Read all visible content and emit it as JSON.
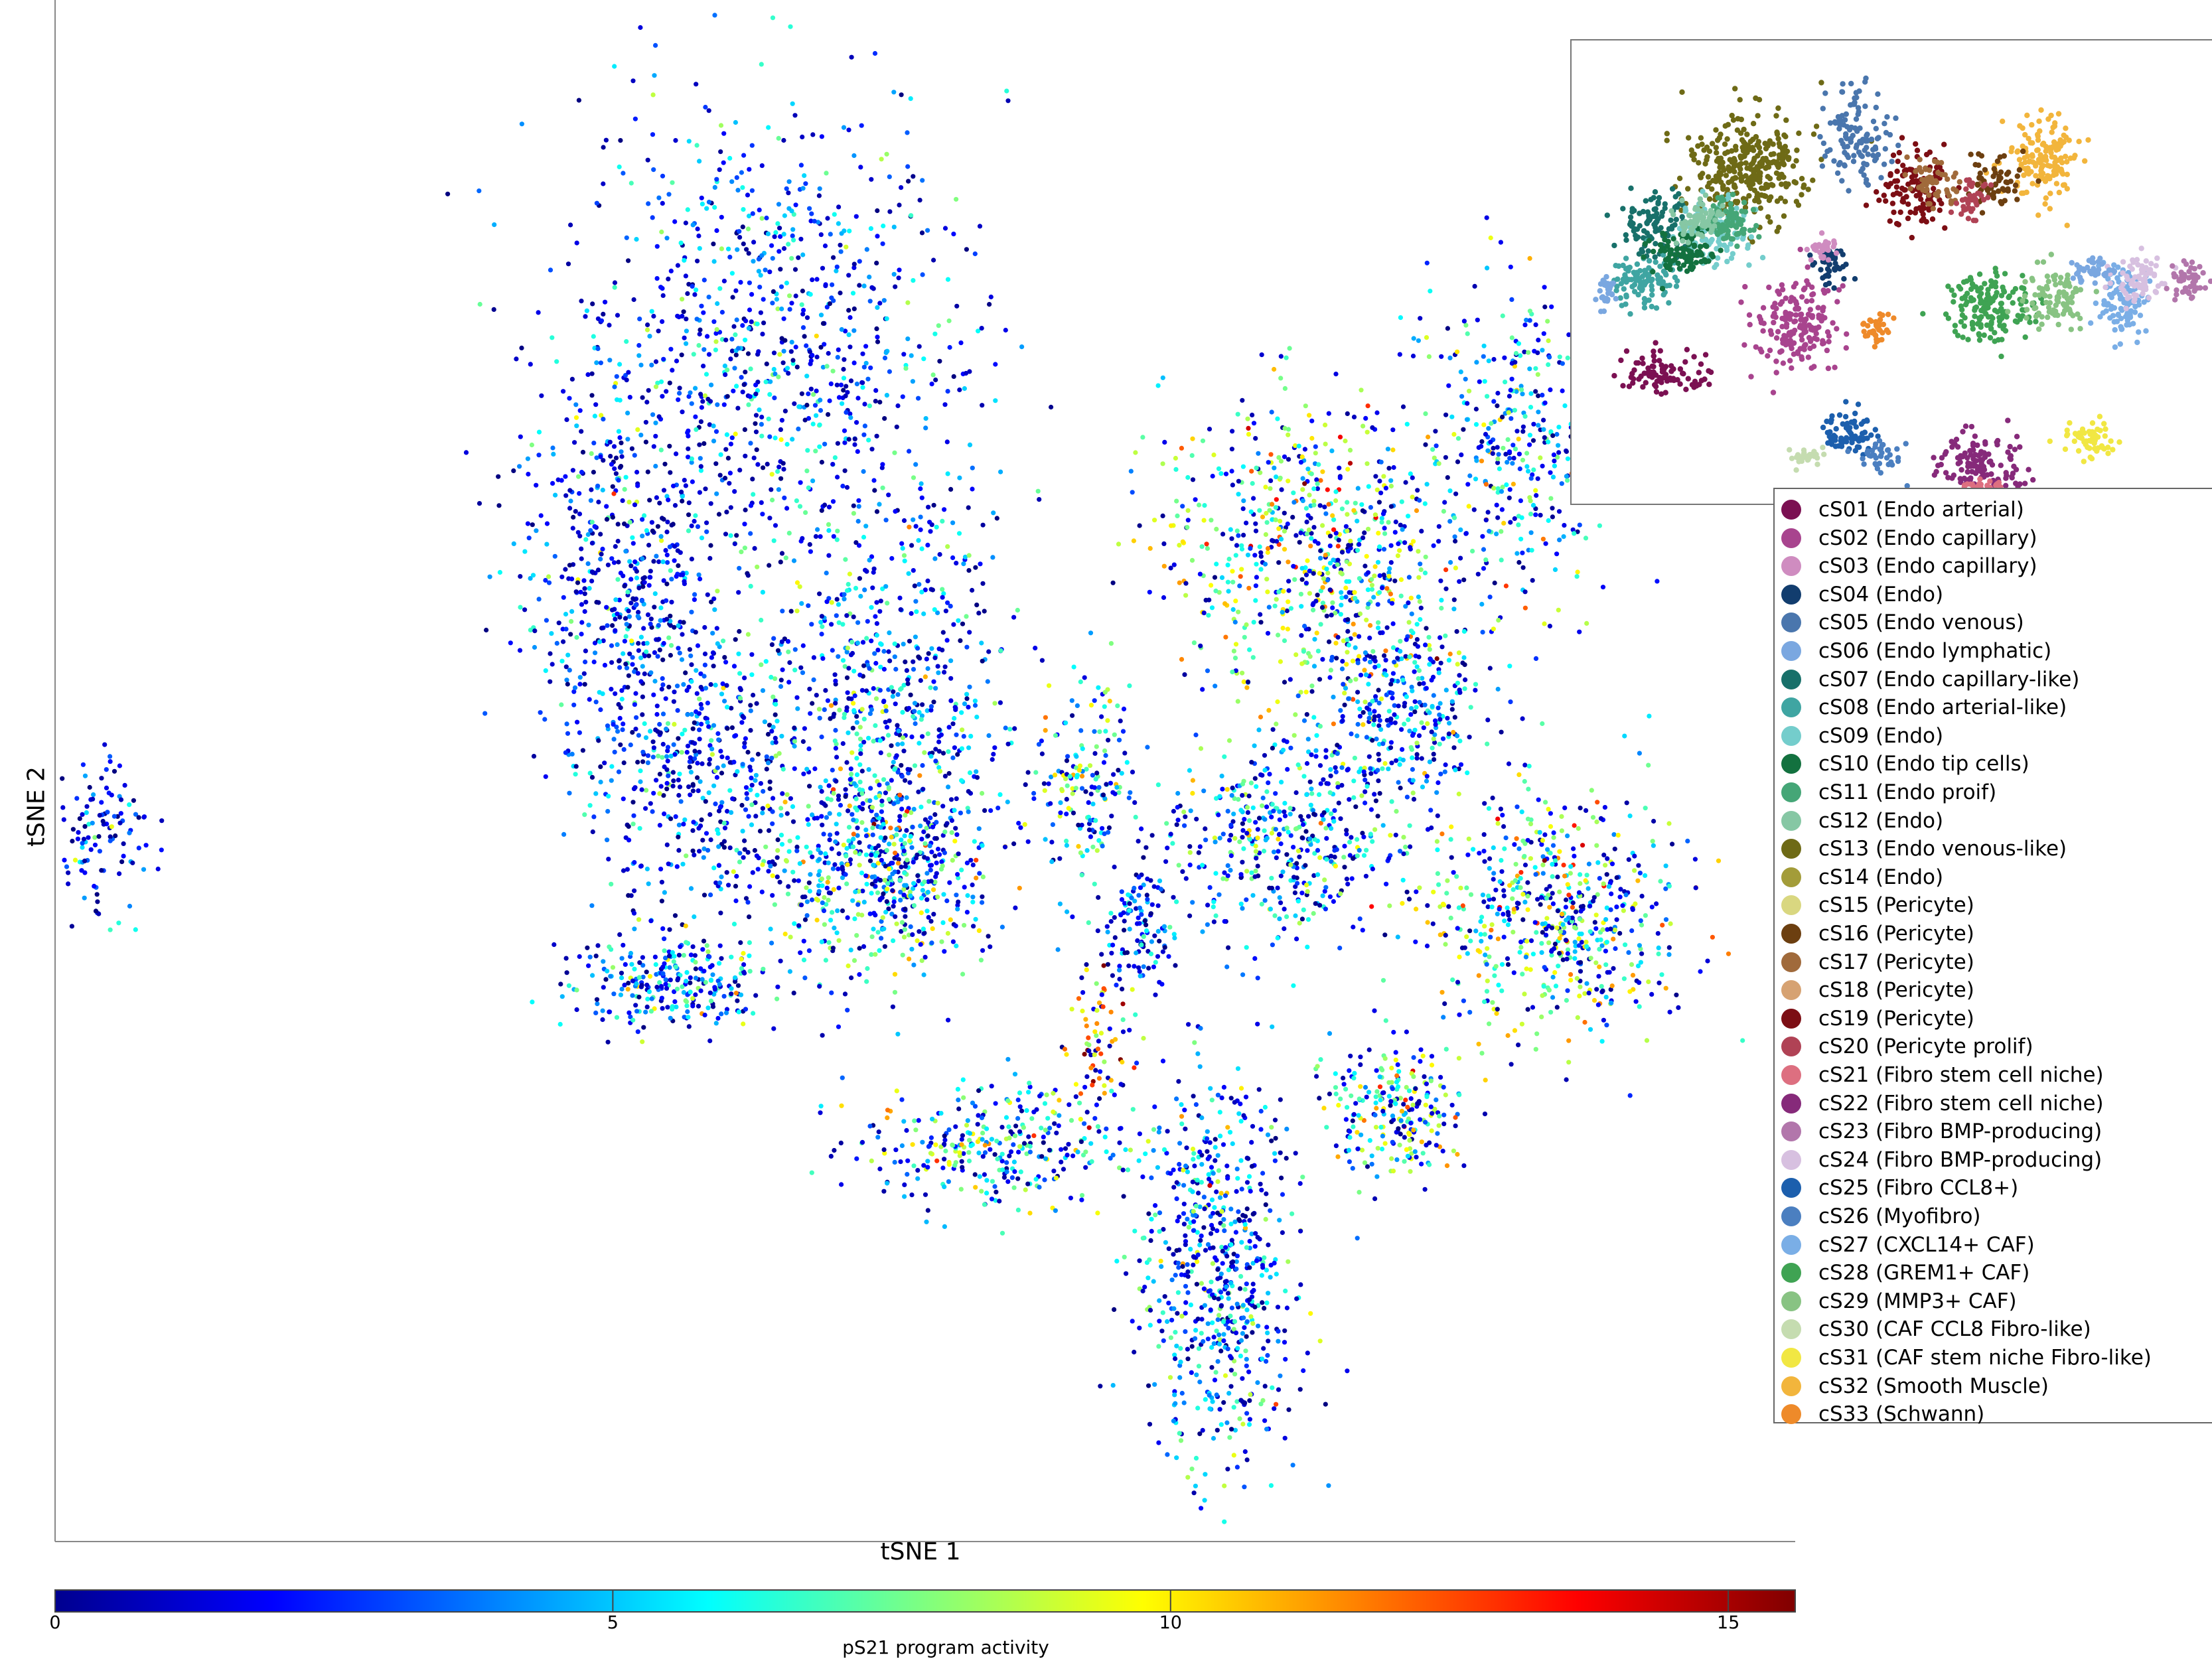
{
  "chart_data": [
    {
      "type": "scatter",
      "title": "",
      "xlabel": "tSNE 1",
      "ylabel": "tSNE 2",
      "color_by": "pS21 program activity",
      "colormap": "jet",
      "clusters": [
        {
          "cx": -10,
          "cy": 62,
          "rx": 22,
          "ry": 26,
          "n": 900,
          "mean": 3.5
        },
        {
          "cx": -28,
          "cy": 36,
          "rx": 12,
          "ry": 22,
          "n": 550,
          "mean": 3.0
        },
        {
          "cx": -18,
          "cy": 15,
          "rx": 12,
          "ry": 16,
          "n": 400,
          "mean": 3.0
        },
        {
          "cx": 5,
          "cy": 22,
          "rx": 14,
          "ry": 22,
          "n": 650,
          "mean": 4.5
        },
        {
          "cx": 5,
          "cy": 5,
          "rx": 13,
          "ry": 10,
          "n": 500,
          "mean": 6.0
        },
        {
          "cx": -22,
          "cy": -8,
          "rx": 12,
          "ry": 5,
          "n": 280,
          "mean": 5.0
        },
        {
          "cx": -95,
          "cy": 8,
          "rx": 6,
          "ry": 8,
          "n": 120,
          "mean": 3.0
        },
        {
          "cx": 30,
          "cy": 15,
          "rx": 6,
          "ry": 10,
          "n": 170,
          "mean": 6.5
        },
        {
          "cx": 37,
          "cy": -2,
          "rx": 4,
          "ry": 6,
          "n": 120,
          "mean": 3.5
        },
        {
          "cx": 60,
          "cy": 40,
          "rx": 18,
          "ry": 16,
          "n": 750,
          "mean": 7.5
        },
        {
          "cx": 85,
          "cy": 52,
          "rx": 10,
          "ry": 16,
          "n": 350,
          "mean": 5.5
        },
        {
          "cx": 55,
          "cy": 8,
          "rx": 14,
          "ry": 10,
          "n": 450,
          "mean": 5.5
        },
        {
          "cx": 90,
          "cy": 0,
          "rx": 15,
          "ry": 12,
          "n": 600,
          "mean": 7.0
        },
        {
          "cx": 70,
          "cy": 22,
          "rx": 10,
          "ry": 10,
          "n": 300,
          "mean": 4.5
        },
        {
          "cx": 18,
          "cy": -26,
          "rx": 16,
          "ry": 6,
          "n": 320,
          "mean": 6.5
        },
        {
          "cx": 47,
          "cy": -40,
          "rx": 9,
          "ry": 20,
          "n": 650,
          "mean": 4.5
        },
        {
          "cx": 70,
          "cy": -22,
          "rx": 8,
          "ry": 7,
          "n": 250,
          "mean": 7.0
        },
        {
          "cx": 32,
          "cy": -15,
          "rx": 4,
          "ry": 7,
          "n": 80,
          "mean": 10.5
        }
      ],
      "xlim": [
        -100,
        120
      ],
      "ylim": [
        -70,
        100
      ],
      "grid": false
    },
    {
      "type": "scatter",
      "title": "",
      "legend": "right",
      "legend_entries": [
        {
          "label": "cS01 (Endo arterial)",
          "color": "#7b1052"
        },
        {
          "label": "cS02 (Endo capillary)",
          "color": "#a8448e"
        },
        {
          "label": "cS03 (Endo capillary)",
          "color": "#cf8cc0"
        },
        {
          "label": "cS04 (Endo)",
          "color": "#123d6e"
        },
        {
          "label": "cS05 (Endo venous)",
          "color": "#4a76ad"
        },
        {
          "label": "cS06 (Endo lymphatic)",
          "color": "#7aa7e0"
        },
        {
          "label": "cS07 (Endo capillary-like)",
          "color": "#18706a"
        },
        {
          "label": "cS08 (Endo arterial-like)",
          "color": "#3fa5a2"
        },
        {
          "label": "cS09 (Endo)",
          "color": "#74cdcc"
        },
        {
          "label": "cS10 (Endo tip cells)",
          "color": "#13713f"
        },
        {
          "label": "cS11 (Endo proif)",
          "color": "#45a677"
        },
        {
          "label": "cS12 (Endo)",
          "color": "#86c7a4"
        },
        {
          "label": "cS13 (Endo venous-like)",
          "color": "#6e6a16"
        },
        {
          "label": "cS14 (Endo)",
          "color": "#a39c39"
        },
        {
          "label": "cS15 (Pericyte)",
          "color": "#d9d780"
        },
        {
          "label": "cS16 (Pericyte)",
          "color": "#6c3f10"
        },
        {
          "label": "cS17 (Pericyte)",
          "color": "#a06a3b"
        },
        {
          "label": "cS18 (Pericyte)",
          "color": "#d6a272"
        },
        {
          "label": "cS19 (Pericyte)",
          "color": "#7c0e14"
        },
        {
          "label": "cS20 (Pericyte prolif)",
          "color": "#b04255"
        },
        {
          "label": "cS21 (Fibro stem cell niche)",
          "color": "#dd6f80"
        },
        {
          "label": "cS22 (Fibro stem cell niche)",
          "color": "#862a7a"
        },
        {
          "label": "cS23 (Fibro BMP-producing)",
          "color": "#b276ab"
        },
        {
          "label": "cS24 (Fibro BMP-producing)",
          "color": "#d7c0e0"
        },
        {
          "label": "cS25 (Fibro CCL8+)",
          "color": "#1c5fad"
        },
        {
          "label": "cS26 (Myofibro)",
          "color": "#4b7fc0"
        },
        {
          "label": "cS27 (CXCL14+ CAF)",
          "color": "#7aaee6"
        },
        {
          "label": "cS28 (GREM1+ CAF)",
          "color": "#3fa353"
        },
        {
          "label": "cS29 (MMP3+ CAF)",
          "color": "#88c383"
        },
        {
          "label": "cS30 (CAF CCL8 Fibro-like)",
          "color": "#c5dcb0"
        },
        {
          "label": "cS31 (CAF stem niche Fibro-like)",
          "color": "#f1e743"
        },
        {
          "label": "cS32 (Smooth Muscle)",
          "color": "#f2b53c"
        },
        {
          "label": "cS33 (Schwann)",
          "color": "#ee8a2a"
        }
      ],
      "clusters": [
        {
          "cx": 0.27,
          "cy": 0.27,
          "rx": 0.09,
          "ry": 0.12,
          "cat": 12,
          "n": 320
        },
        {
          "cx": 0.44,
          "cy": 0.2,
          "rx": 0.05,
          "ry": 0.1,
          "cat": 4,
          "n": 120
        },
        {
          "cx": 0.13,
          "cy": 0.4,
          "rx": 0.06,
          "ry": 0.07,
          "cat": 6,
          "n": 110
        },
        {
          "cx": 0.22,
          "cy": 0.42,
          "rx": 0.06,
          "ry": 0.07,
          "cat": 8,
          "n": 110
        },
        {
          "cx": 0.11,
          "cy": 0.52,
          "rx": 0.05,
          "ry": 0.06,
          "cat": 7,
          "n": 100
        },
        {
          "cx": 0.17,
          "cy": 0.46,
          "rx": 0.05,
          "ry": 0.05,
          "cat": 9,
          "n": 90
        },
        {
          "cx": 0.24,
          "cy": 0.39,
          "rx": 0.04,
          "ry": 0.05,
          "cat": 10,
          "n": 80
        },
        {
          "cx": 0.19,
          "cy": 0.38,
          "rx": 0.04,
          "ry": 0.04,
          "cat": 11,
          "n": 70
        },
        {
          "cx": 0.14,
          "cy": 0.72,
          "rx": 0.07,
          "ry": 0.04,
          "cat": 0,
          "n": 90
        },
        {
          "cx": 0.35,
          "cy": 0.62,
          "rx": 0.07,
          "ry": 0.1,
          "cat": 1,
          "n": 180
        },
        {
          "cx": 0.4,
          "cy": 0.48,
          "rx": 0.03,
          "ry": 0.04,
          "cat": 3,
          "n": 50
        },
        {
          "cx": 0.39,
          "cy": 0.45,
          "rx": 0.02,
          "ry": 0.03,
          "cat": 2,
          "n": 30
        },
        {
          "cx": 0.47,
          "cy": 0.62,
          "rx": 0.025,
          "ry": 0.04,
          "cat": 32,
          "n": 40
        },
        {
          "cx": 0.53,
          "cy": 0.32,
          "rx": 0.05,
          "ry": 0.08,
          "cat": 18,
          "n": 120
        },
        {
          "cx": 0.56,
          "cy": 0.3,
          "rx": 0.04,
          "ry": 0.05,
          "cat": 16,
          "n": 60
        },
        {
          "cx": 0.73,
          "cy": 0.25,
          "rx": 0.06,
          "ry": 0.09,
          "cat": 31,
          "n": 150
        },
        {
          "cx": 0.65,
          "cy": 0.3,
          "rx": 0.04,
          "ry": 0.06,
          "cat": 15,
          "n": 60
        },
        {
          "cx": 0.62,
          "cy": 0.34,
          "rx": 0.03,
          "ry": 0.04,
          "cat": 19,
          "n": 40
        },
        {
          "cx": 0.65,
          "cy": 0.58,
          "rx": 0.07,
          "ry": 0.08,
          "cat": 27,
          "n": 160
        },
        {
          "cx": 0.75,
          "cy": 0.55,
          "rx": 0.05,
          "ry": 0.06,
          "cat": 28,
          "n": 90
        },
        {
          "cx": 0.85,
          "cy": 0.56,
          "rx": 0.04,
          "ry": 0.08,
          "cat": 26,
          "n": 110
        },
        {
          "cx": 0.88,
          "cy": 0.52,
          "rx": 0.04,
          "ry": 0.05,
          "cat": 23,
          "n": 70
        },
        {
          "cx": 0.8,
          "cy": 0.5,
          "rx": 0.03,
          "ry": 0.03,
          "cat": 5,
          "n": 40
        },
        {
          "cx": 0.95,
          "cy": 0.52,
          "rx": 0.03,
          "ry": 0.05,
          "cat": 22,
          "n": 50
        },
        {
          "cx": 0.05,
          "cy": 0.54,
          "rx": 0.02,
          "ry": 0.04,
          "cat": 5,
          "n": 30
        },
        {
          "cx": 0.43,
          "cy": 0.85,
          "rx": 0.04,
          "ry": 0.05,
          "cat": 24,
          "n": 70
        },
        {
          "cx": 0.37,
          "cy": 0.9,
          "rx": 0.03,
          "ry": 0.02,
          "cat": 29,
          "n": 30
        },
        {
          "cx": 0.63,
          "cy": 0.92,
          "rx": 0.06,
          "ry": 0.07,
          "cat": 21,
          "n": 140
        },
        {
          "cx": 0.63,
          "cy": 0.97,
          "rx": 0.04,
          "ry": 0.02,
          "cat": 20,
          "n": 50
        },
        {
          "cx": 0.8,
          "cy": 0.86,
          "rx": 0.04,
          "ry": 0.04,
          "cat": 30,
          "n": 60
        },
        {
          "cx": 0.48,
          "cy": 0.9,
          "rx": 0.04,
          "ry": 0.03,
          "cat": 25,
          "n": 40
        }
      ]
    }
  ],
  "colorbar": {
    "label": "pS21 program activity",
    "min": 0,
    "max": 15.6,
    "ticks": [
      {
        "value": 0,
        "label": "0"
      },
      {
        "value": 5,
        "label": "5"
      },
      {
        "value": 10,
        "label": "10"
      },
      {
        "value": 15,
        "label": "15"
      }
    ]
  }
}
